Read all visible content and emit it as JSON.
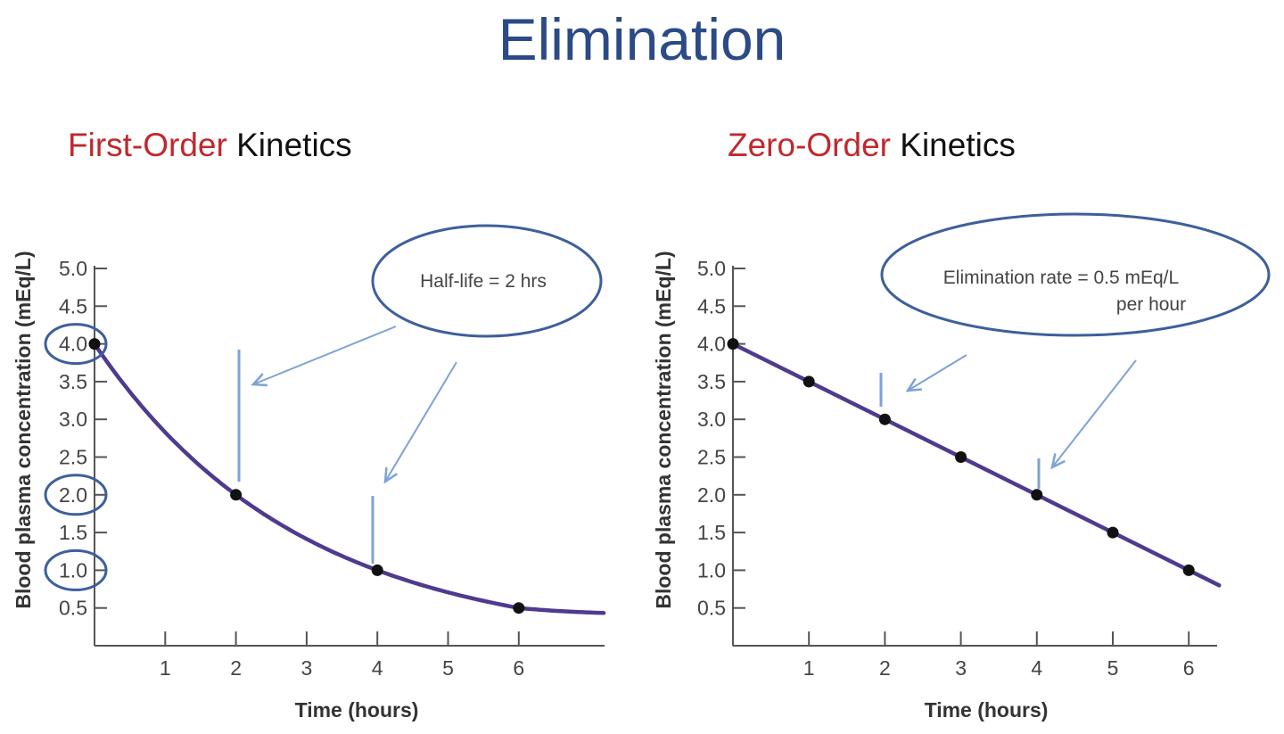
{
  "page_title": "Elimination",
  "colors": {
    "title": "#2b4a86",
    "accent": "#c0282d",
    "curve": "#4f3a8f",
    "annotation": "#3d5f9c",
    "arrow": "#7ea2d6",
    "axis": "#555555"
  },
  "chart_data": [
    {
      "type": "line",
      "title_accent": "First-Order",
      "title_rest": " Kinetics",
      "xlabel": "Time (hours)",
      "ylabel": "Blood plasma concentration (mEq/L)",
      "xlim": [
        0,
        7.2
      ],
      "ylim": [
        0,
        5.0
      ],
      "x_ticks": [
        "1",
        "2",
        "3",
        "4",
        "5",
        "6"
      ],
      "y_ticks": [
        "0.5",
        "1.0",
        "1.5",
        "2.0",
        "2.5",
        "3.0",
        "3.5",
        "4.0",
        "4.5",
        "5.0"
      ],
      "series": [
        {
          "x": [
            0,
            2,
            4,
            6
          ],
          "y": [
            4.0,
            2.0,
            1.0,
            0.5
          ]
        }
      ],
      "curve_model": "exponential",
      "half_life_hours": 2,
      "asymptote": 0.4,
      "circled_y_ticks": [
        "4.0",
        "2.0",
        "1.0"
      ],
      "annotation": {
        "lines": [
          "Half-life = 2 hrs"
        ]
      },
      "grid": false
    },
    {
      "type": "line",
      "title_accent": "Zero-Order",
      "title_rest": " Kinetics",
      "xlabel": "Time (hours)",
      "ylabel": "Blood plasma concentration (mEq/L)",
      "xlim": [
        0,
        6.4
      ],
      "ylim": [
        0,
        5.0
      ],
      "x_ticks": [
        "1",
        "2",
        "3",
        "4",
        "5",
        "6"
      ],
      "y_ticks": [
        "0.5",
        "1.0",
        "1.5",
        "2.0",
        "2.5",
        "3.0",
        "3.5",
        "4.0",
        "4.5",
        "5.0"
      ],
      "series": [
        {
          "x": [
            0,
            1,
            2,
            3,
            4,
            5,
            6
          ],
          "y": [
            4.0,
            3.5,
            3.0,
            2.5,
            2.0,
            1.5,
            1.0
          ]
        }
      ],
      "curve_model": "linear",
      "elimination_rate": 0.5,
      "annotation": {
        "lines": [
          "Elimination rate = 0.5 mEq/L",
          "per hour"
        ]
      },
      "grid": false
    }
  ]
}
